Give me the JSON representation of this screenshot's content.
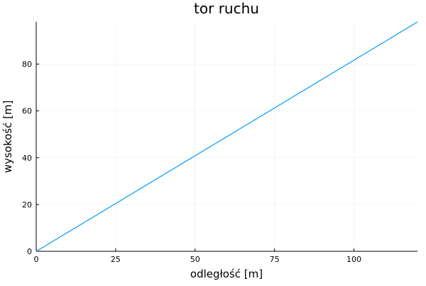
{
  "chart_data": {
    "type": "line",
    "title": "tor ruchu",
    "xlabel": "odległość [m]",
    "ylabel": "wysokość [m]",
    "xlim": [
      0,
      120
    ],
    "ylim": [
      0,
      98
    ],
    "xticks": [
      0,
      25,
      50,
      75,
      100
    ],
    "xtick_labels": [
      "0",
      "25",
      "50",
      "75",
      "100"
    ],
    "yticks": [
      0,
      20,
      40,
      60,
      80
    ],
    "ytick_labels": [
      "0",
      "20",
      "40",
      "60",
      "80"
    ],
    "grid": true,
    "legend": "none",
    "series": [
      {
        "color": "#009af9",
        "x": [
          0,
          120
        ],
        "y": [
          0,
          98
        ]
      }
    ]
  }
}
